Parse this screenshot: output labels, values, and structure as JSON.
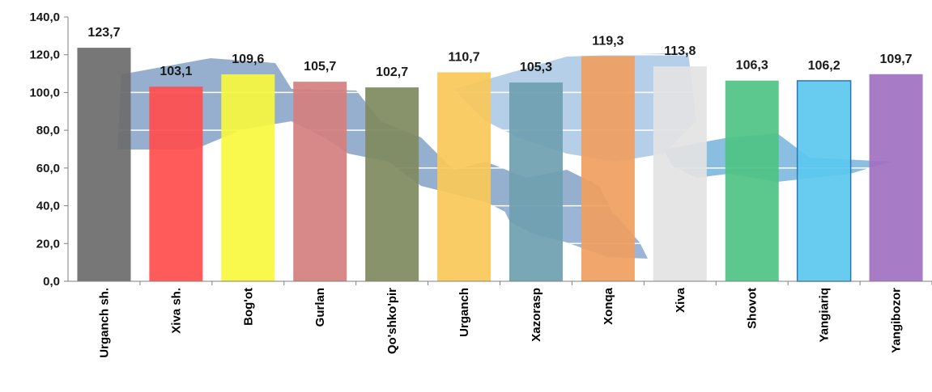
{
  "chart_data": {
    "type": "bar",
    "categories": [
      "Urganch sh.",
      "Xiva sh.",
      "Bog'ot",
      "Gurlan",
      "Qo'shko'pir",
      "Urganch",
      "Xazorasp",
      "Xonqa",
      "Xiva",
      "Shovot",
      "Yangiariq",
      "Yangibozor"
    ],
    "values": [
      123.7,
      103.1,
      109.6,
      105.7,
      102.7,
      110.7,
      105.3,
      119.3,
      113.8,
      106.3,
      106.2,
      109.7
    ],
    "value_labels": [
      "123,7",
      "103,1",
      "109,6",
      "105,7",
      "102,7",
      "110,7",
      "105,3",
      "119,3",
      "113,8",
      "106,3",
      "106,2",
      "109,7"
    ],
    "colors": [
      "#6b6b6b",
      "#ff4d4d",
      "#f7f73e",
      "#d47f7f",
      "#7f8a5e",
      "#fac858",
      "#6fa0b0",
      "#f0a060",
      "#e3e3e3",
      "#4fc383",
      "#5ac8ef",
      "#a070c0"
    ],
    "yticks": [
      "0,0",
      "20,0",
      "40,0",
      "60,0",
      "80,0",
      "100,0",
      "120,0",
      "140,0"
    ],
    "ylim": [
      0,
      140
    ],
    "grid": true,
    "title": "",
    "xlabel": "",
    "ylabel": ""
  }
}
